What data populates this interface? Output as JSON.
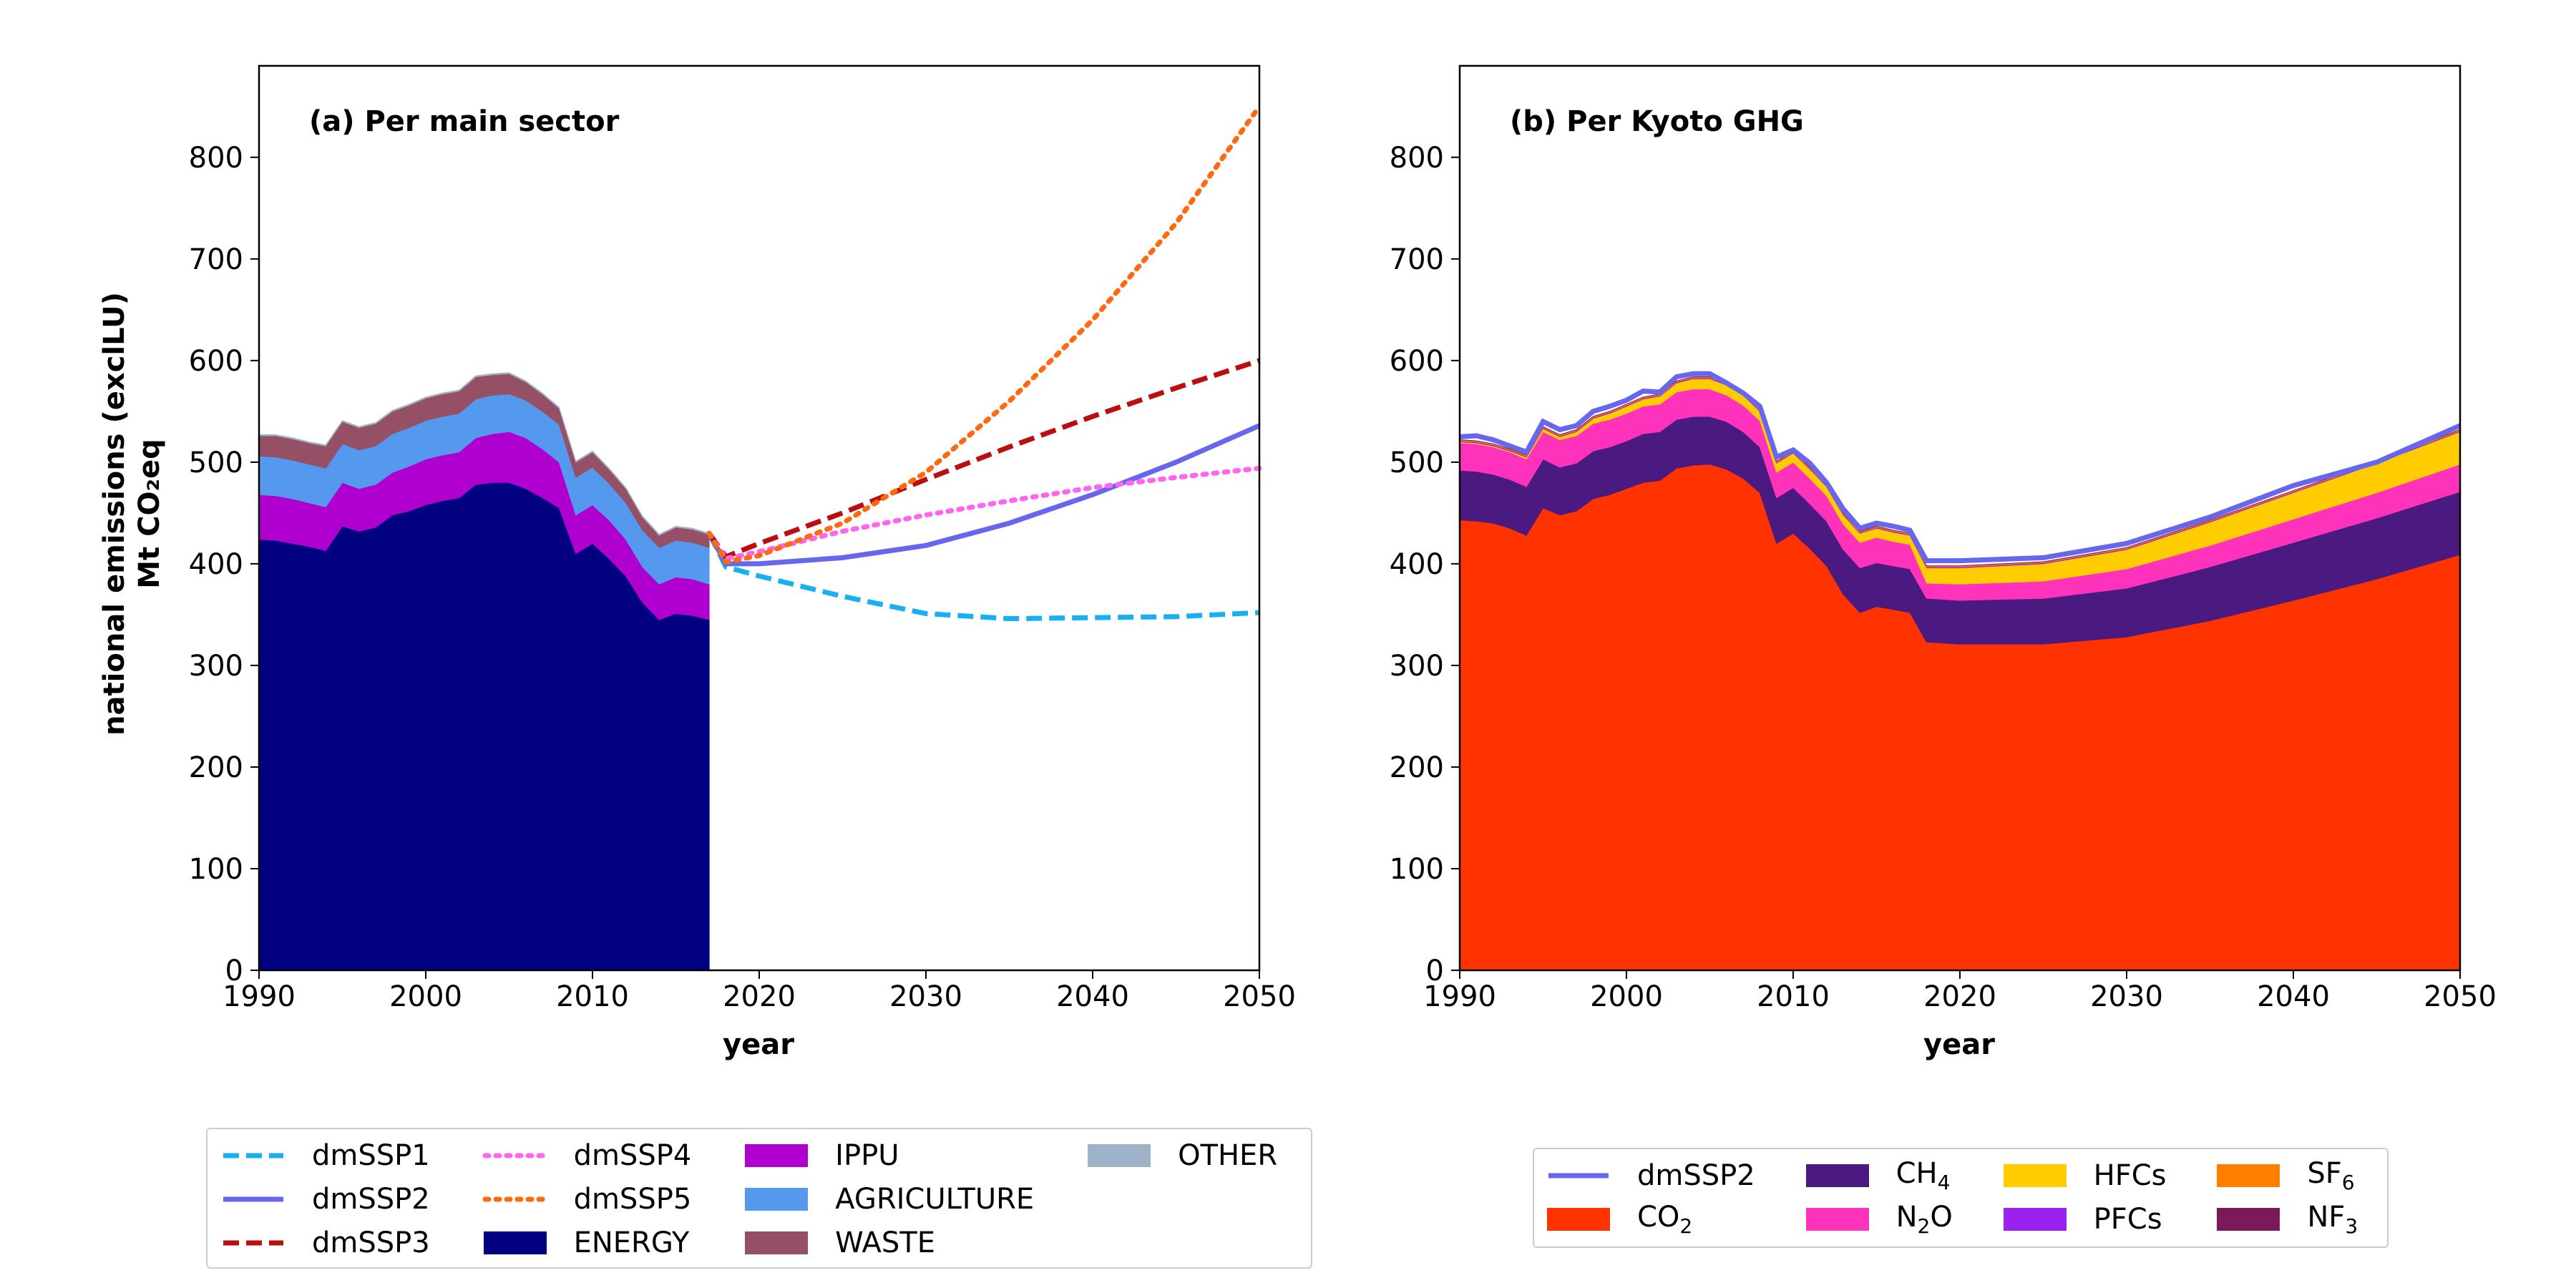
{
  "chart_data": [
    {
      "type": "area",
      "title": "(a) Per main sector",
      "xlabel": "year",
      "ylabel": "national emissions (exclLU)",
      "ylabel2": "Mt CO₂eq",
      "xlim": [
        1990,
        2050
      ],
      "ylim": [
        0,
        890
      ],
      "xticks": [
        1990,
        2000,
        2010,
        2020,
        2030,
        2040,
        2050
      ],
      "yticks": [
        0,
        100,
        200,
        300,
        400,
        500,
        600,
        700,
        800
      ],
      "grid": false,
      "legend_position": "bottom",
      "history_years": [
        1990,
        1991,
        1992,
        1993,
        1994,
        1995,
        1996,
        1997,
        1998,
        1999,
        2000,
        2001,
        2002,
        2003,
        2004,
        2005,
        2006,
        2007,
        2008,
        2009,
        2010,
        2011,
        2012,
        2013,
        2014,
        2015,
        2016,
        2017
      ],
      "stacked_series": [
        {
          "name": "ENERGY",
          "color": "#000080",
          "values": [
            424,
            423,
            420,
            417,
            413,
            437,
            432,
            436,
            448,
            452,
            458,
            462,
            465,
            478,
            480,
            480,
            474,
            465,
            455,
            410,
            420,
            405,
            388,
            362,
            345,
            351,
            349,
            345
          ]
        },
        {
          "name": "IPPU",
          "color": "#b000d0",
          "values": [
            44,
            44,
            44,
            43,
            43,
            43,
            42,
            42,
            42,
            44,
            45,
            45,
            45,
            46,
            48,
            50,
            50,
            48,
            45,
            38,
            38,
            38,
            36,
            35,
            35,
            36,
            36,
            35
          ]
        },
        {
          "name": "AGRICULTURE",
          "color": "#5599ee",
          "values": [
            38,
            38,
            38,
            38,
            38,
            38,
            38,
            38,
            38,
            38,
            38,
            38,
            38,
            38,
            38,
            37,
            37,
            37,
            37,
            37,
            37,
            36,
            36,
            36,
            36,
            36,
            36,
            36
          ]
        },
        {
          "name": "WASTE",
          "color": "#955065",
          "values": [
            20,
            21,
            21,
            21,
            22,
            22,
            22,
            22,
            22,
            22,
            22,
            22,
            22,
            22,
            20,
            20,
            18,
            17,
            16,
            15,
            15,
            14,
            14,
            13,
            12,
            13,
            13,
            13
          ]
        },
        {
          "name": "OTHER",
          "color": "#9fb3c8",
          "values": [
            1,
            1,
            1,
            1,
            1,
            1,
            1,
            1,
            1,
            1,
            1,
            1,
            1,
            1,
            1,
            1,
            1,
            1,
            1,
            1,
            1,
            1,
            1,
            1,
            1,
            1,
            1,
            1
          ]
        }
      ],
      "scenarios_x": [
        2017,
        2018,
        2020,
        2025,
        2030,
        2035,
        2040,
        2045,
        2050
      ],
      "line_series": [
        {
          "name": "dmSSP1",
          "color": "#1ab0f0",
          "dash": "dashed",
          "values": [
            430,
            397,
            388,
            368,
            351,
            346,
            347,
            348,
            352
          ]
        },
        {
          "name": "dmSSP2",
          "color": "#6666ee",
          "dash": "solid",
          "values": [
            430,
            400,
            400,
            406,
            418,
            440,
            468,
            500,
            536
          ]
        },
        {
          "name": "dmSSP3",
          "color": "#bb0e0e",
          "dash": "dashed",
          "values": [
            430,
            407,
            420,
            450,
            483,
            515,
            545,
            573,
            600
          ]
        },
        {
          "name": "dmSSP4",
          "color": "#ff66ee",
          "dash": "dotted",
          "values": [
            430,
            405,
            412,
            432,
            448,
            462,
            475,
            485,
            494
          ]
        },
        {
          "name": "dmSSP5",
          "color": "#ff6a10",
          "dash": "dotted",
          "values": [
            430,
            402,
            408,
            440,
            490,
            560,
            640,
            735,
            850
          ]
        }
      ],
      "legend": [
        "dmSSP1",
        "dmSSP2",
        "dmSSP3",
        "dmSSP4",
        "dmSSP5",
        "ENERGY",
        "IPPU",
        "AGRICULTURE",
        "WASTE",
        "OTHER"
      ]
    },
    {
      "type": "area",
      "title": "(b) Per Kyoto GHG",
      "xlabel": "year",
      "xlim": [
        1990,
        2050
      ],
      "ylim": [
        0,
        890
      ],
      "xticks": [
        1990,
        2000,
        2010,
        2020,
        2030,
        2040,
        2050
      ],
      "yticks": [
        0,
        100,
        200,
        300,
        400,
        500,
        600,
        700,
        800
      ],
      "grid": false,
      "legend_position": "bottom",
      "x": [
        1990,
        1991,
        1992,
        1993,
        1994,
        1995,
        1996,
        1997,
        1998,
        1999,
        2000,
        2001,
        2002,
        2003,
        2004,
        2005,
        2006,
        2007,
        2008,
        2009,
        2010,
        2011,
        2012,
        2013,
        2014,
        2015,
        2016,
        2017,
        2018,
        2020,
        2025,
        2030,
        2035,
        2040,
        2045,
        2050
      ],
      "stacked_series": [
        {
          "name": "CO₂",
          "color": "#ff3300",
          "values": [
            443,
            442,
            440,
            435,
            428,
            455,
            448,
            452,
            464,
            468,
            474,
            480,
            482,
            494,
            497,
            498,
            493,
            484,
            470,
            420,
            430,
            415,
            398,
            370,
            352,
            358,
            355,
            352,
            323,
            321,
            321,
            328,
            344,
            364,
            385,
            409
          ]
        },
        {
          "name": "CH₄",
          "color": "#4a1a80",
          "values": [
            49,
            49,
            48,
            48,
            48,
            48,
            47,
            47,
            47,
            47,
            47,
            48,
            48,
            48,
            48,
            47,
            47,
            46,
            45,
            45,
            45,
            44,
            44,
            44,
            44,
            43,
            43,
            43,
            43,
            43,
            45,
            48,
            53,
            57,
            60,
            62
          ]
        },
        {
          "name": "N₂O",
          "color": "#ff33bb",
          "values": [
            27,
            27,
            27,
            27,
            27,
            27,
            27,
            27,
            27,
            27,
            27,
            27,
            27,
            27,
            27,
            27,
            26,
            26,
            26,
            25,
            25,
            25,
            25,
            25,
            25,
            25,
            24,
            24,
            15,
            16,
            17,
            19,
            21,
            23,
            25,
            27
          ]
        },
        {
          "name": "HFCs",
          "color": "#ffcc00",
          "values": [
            1,
            1,
            1,
            1,
            2,
            3,
            3,
            4,
            5,
            6,
            7,
            7,
            8,
            9,
            10,
            10,
            10,
            10,
            9,
            9,
            9,
            9,
            9,
            9,
            9,
            9,
            9,
            9,
            15,
            16,
            17,
            19,
            23,
            26,
            29,
            32
          ]
        },
        {
          "name": "PFCs",
          "color": "#9922ee",
          "values": [
            1,
            1,
            1,
            1,
            1,
            1,
            1,
            1,
            1,
            1,
            1,
            1,
            1,
            1,
            1,
            1,
            1,
            1,
            1,
            1,
            1,
            1,
            1,
            1,
            1,
            1,
            1,
            1,
            1,
            1,
            1,
            1,
            1,
            1,
            1,
            1
          ]
        },
        {
          "name": "SF₆",
          "color": "#ff8000",
          "values": [
            1,
            1,
            1,
            1,
            1,
            1,
            1,
            1,
            1,
            1,
            1,
            1,
            1,
            1,
            1,
            1,
            1,
            1,
            1,
            1,
            1,
            1,
            1,
            1,
            1,
            1,
            1,
            1,
            1,
            1,
            1,
            1,
            1,
            1,
            1,
            1
          ]
        },
        {
          "name": "NF₃",
          "color": "#7a1a5a",
          "values": [
            0,
            0,
            0,
            0,
            0,
            0,
            0,
            0,
            0,
            0,
            0,
            0,
            0,
            0,
            0,
            0,
            0,
            0,
            0,
            0,
            0,
            0,
            0,
            0,
            0,
            0,
            0,
            0,
            0,
            0,
            0,
            0,
            0,
            0,
            0,
            0
          ]
        }
      ],
      "line_series": [
        {
          "name": "dmSSP2",
          "color": "#6666ee",
          "dash": "solid",
          "values": [
            525,
            526,
            522,
            516,
            510,
            540,
            532,
            536,
            550,
            555,
            561,
            570,
            569,
            584,
            587,
            587,
            578,
            568,
            555,
            505,
            512,
            499,
            480,
            454,
            435,
            440,
            437,
            433,
            403,
            403,
            406,
            420,
            446,
            477,
            500,
            536
          ]
        }
      ],
      "legend": [
        "dmSSP2",
        "CO₂",
        "CH₄",
        "N₂O",
        "HFCs",
        "PFCs",
        "SF₆",
        "NF₃"
      ]
    }
  ],
  "legend_a": {
    "items": [
      {
        "label": "dmSSP1",
        "type": "line",
        "color": "#1ab0f0",
        "dash": "dashed"
      },
      {
        "label": "dmSSP2",
        "type": "line",
        "color": "#6666ee",
        "dash": "solid"
      },
      {
        "label": "dmSSP3",
        "type": "line",
        "color": "#bb0e0e",
        "dash": "dashed"
      },
      {
        "label": "dmSSP4",
        "type": "line",
        "color": "#ff66ee",
        "dash": "dotted"
      },
      {
        "label": "dmSSP5",
        "type": "line",
        "color": "#ff6a10",
        "dash": "dotted"
      },
      {
        "label": "ENERGY",
        "type": "patch",
        "color": "#000080"
      },
      {
        "label": "IPPU",
        "type": "patch",
        "color": "#b000d0"
      },
      {
        "label": "AGRICULTURE",
        "type": "patch",
        "color": "#5599ee"
      },
      {
        "label": "WASTE",
        "type": "patch",
        "color": "#955065"
      },
      {
        "label": "OTHER",
        "type": "patch",
        "color": "#9fb3c8"
      }
    ]
  },
  "legend_b": {
    "items": [
      {
        "label": "dmSSP2",
        "type": "line",
        "color": "#6666ee",
        "dash": "solid"
      },
      {
        "label": "CO₂",
        "type": "patch",
        "color": "#ff3300"
      },
      {
        "label": "CH₄",
        "type": "patch",
        "color": "#4a1a80"
      },
      {
        "label": "N₂O",
        "type": "patch",
        "color": "#ff33bb"
      },
      {
        "label": "HFCs",
        "type": "patch",
        "color": "#ffcc00"
      },
      {
        "label": "PFCs",
        "type": "patch",
        "color": "#9922ee"
      },
      {
        "label": "SF₆",
        "type": "patch",
        "color": "#ff8000"
      },
      {
        "label": "NF₃",
        "type": "patch",
        "color": "#7a1a5a"
      }
    ]
  }
}
